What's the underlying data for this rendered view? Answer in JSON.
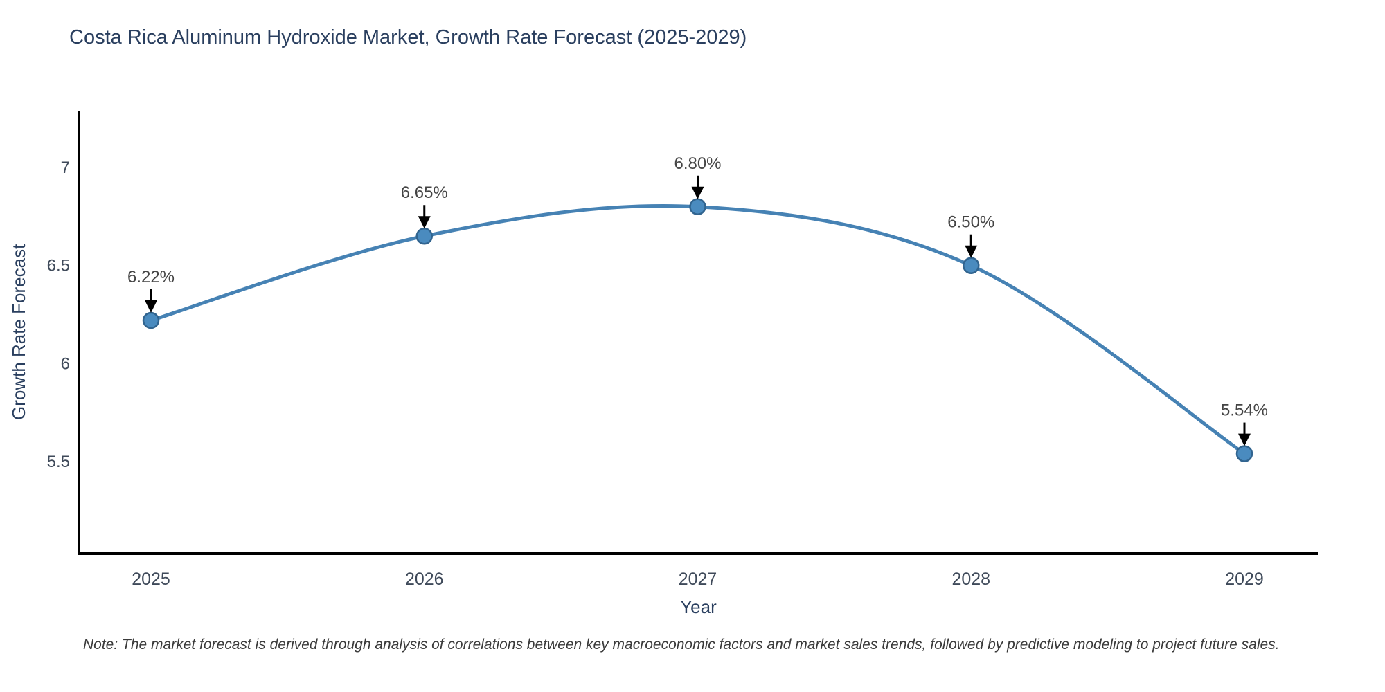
{
  "chart_data": {
    "type": "line",
    "title": "Costa Rica Aluminum Hydroxide Market, Growth Rate Forecast (2025-2029)",
    "xlabel": "Year",
    "ylabel": "Growth Rate Forecast",
    "note": "Note: The market forecast is derived through analysis of correlations between key macroeconomic factors and market sales trends, followed by predictive modeling to project future sales.",
    "categories": [
      "2025",
      "2026",
      "2027",
      "2028",
      "2029"
    ],
    "series": [
      {
        "name": "Growth Rate Forecast",
        "values": [
          6.22,
          6.65,
          6.8,
          6.5,
          5.54
        ],
        "point_labels": [
          "6.22%",
          "6.65%",
          "6.80%",
          "6.50%",
          "5.54%"
        ]
      }
    ],
    "ytick_labels": [
      "7",
      "6.5",
      "6",
      "5.5"
    ],
    "ytick_values": [
      7,
      6.5,
      6,
      5.5
    ],
    "ylim": [
      5.03,
      7.29
    ],
    "line_shape": "spline",
    "grid": false,
    "legend": false,
    "colors": {
      "line": "#4682b4",
      "marker_fill": "#4a8bbf",
      "marker_stroke": "#31648f",
      "axis": "#000000",
      "title_text": "#2a3f5f",
      "tick_text": "#3f4a5a",
      "annotation_text": "#444444",
      "arrow": "#000000",
      "note_text": "#3a3a3a"
    }
  }
}
